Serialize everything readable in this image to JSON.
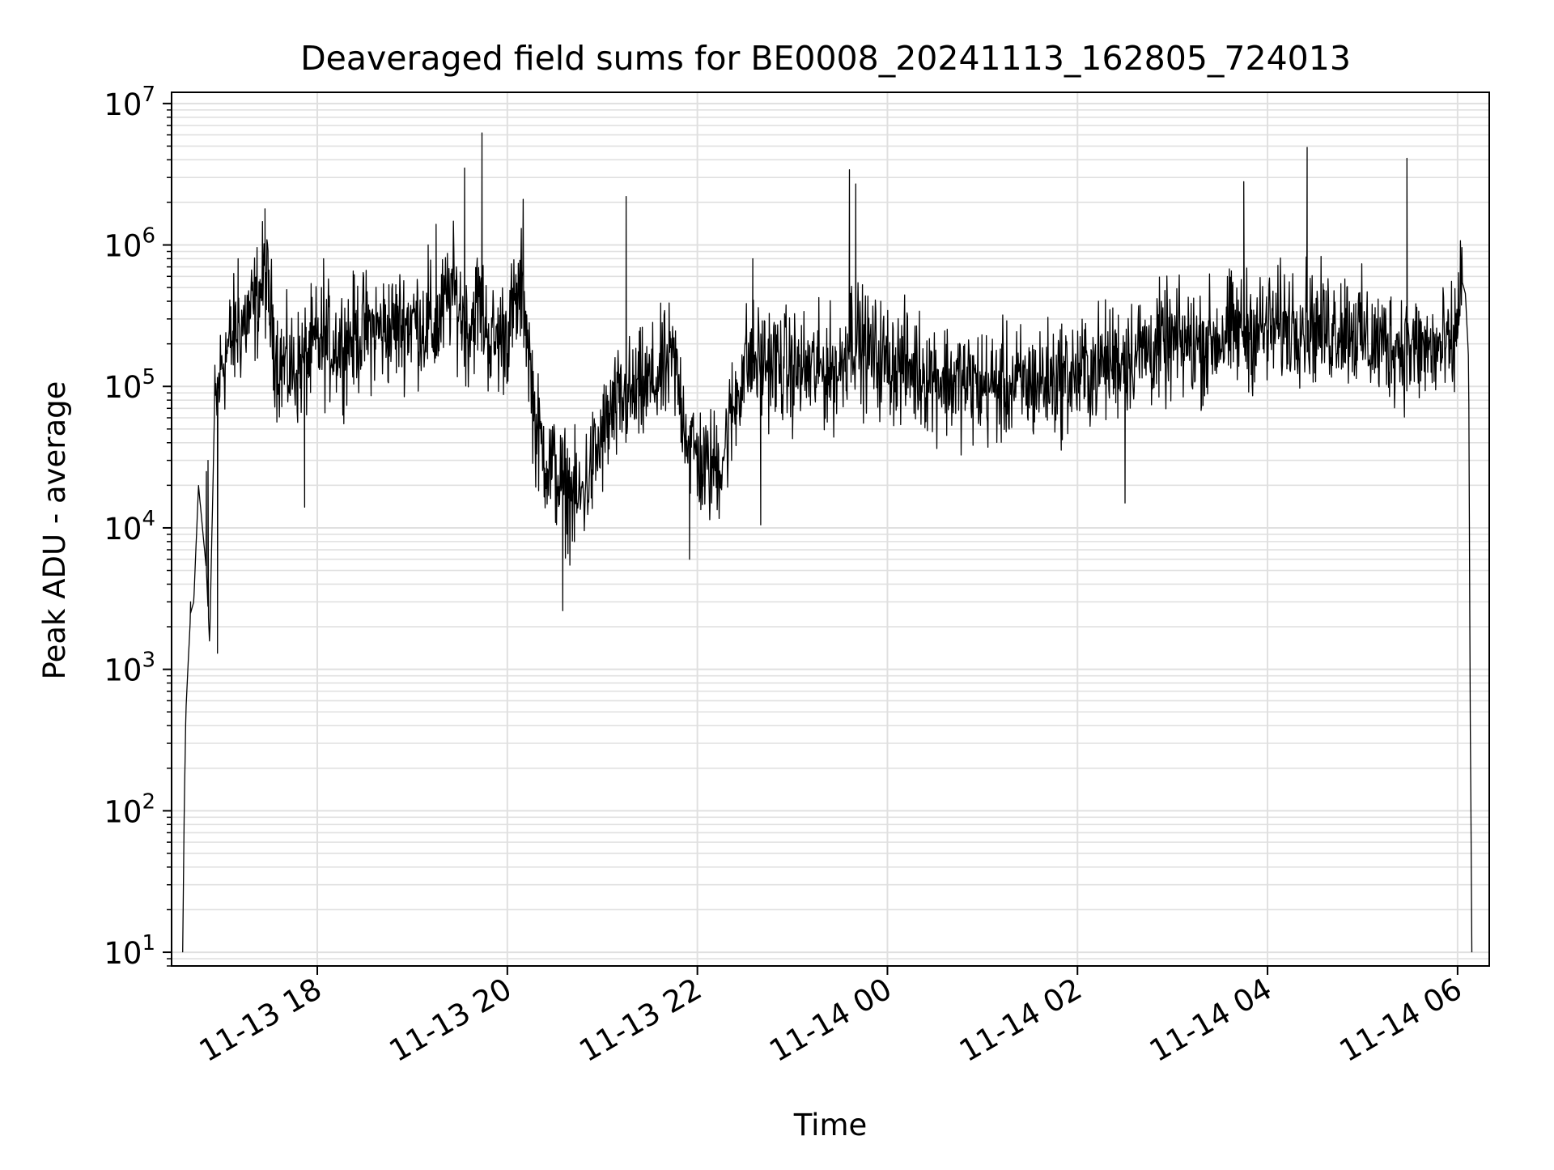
{
  "chart_data": {
    "type": "line",
    "title": "Deaveraged field sums for BE0008_20241113_162805_724013",
    "xlabel": "Time",
    "ylabel": "Peak ADU - average",
    "yscale": "log",
    "ylim": [
      8,
      12000000
    ],
    "xlim": [
      "2024-11-13 16:28",
      "2024-11-14 06:20"
    ],
    "grid": true,
    "line_color": "#000000",
    "grid_color": "#e0e0e0",
    "x_ticks": [
      {
        "t": "2024-11-13 18:00",
        "label": "11-13 18"
      },
      {
        "t": "2024-11-13 20:00",
        "label": "11-13 20"
      },
      {
        "t": "2024-11-13 22:00",
        "label": "11-13 22"
      },
      {
        "t": "2024-11-14 00:00",
        "label": "11-14 00"
      },
      {
        "t": "2024-11-14 02:00",
        "label": "11-14 02"
      },
      {
        "t": "2024-11-14 04:00",
        "label": "11-14 04"
      },
      {
        "t": "2024-11-14 06:00",
        "label": "11-14 06"
      }
    ],
    "y_ticks": [
      {
        "v": 10,
        "base": "10",
        "exp": "1"
      },
      {
        "v": 100,
        "base": "10",
        "exp": "2"
      },
      {
        "v": 1000,
        "base": "10",
        "exp": "3"
      },
      {
        "v": 10000,
        "base": "10",
        "exp": "4"
      },
      {
        "v": 100000,
        "base": "10",
        "exp": "5"
      },
      {
        "v": 1000000,
        "base": "10",
        "exp": "6"
      },
      {
        "v": 10000000,
        "base": "10",
        "exp": "7"
      }
    ],
    "series": [
      {
        "x": [
          "2024-11-13 16:35",
          "2024-11-13 16:36",
          "2024-11-13 16:37",
          "2024-11-13 16:40",
          "2024-11-13 16:42",
          "2024-11-13 16:45",
          "2024-11-13 16:50",
          "2024-11-13 16:52",
          "2024-11-13 16:55",
          "2024-11-13 17:00",
          "2024-11-13 17:05",
          "2024-11-13 17:10",
          "2024-11-13 17:20",
          "2024-11-13 17:27",
          "2024-11-13 17:35",
          "2024-11-13 17:45",
          "2024-11-13 17:52",
          "2024-11-13 18:00",
          "2024-11-13 18:15",
          "2024-11-13 18:30",
          "2024-11-13 18:45",
          "2024-11-13 19:00",
          "2024-11-13 19:15",
          "2024-11-13 19:25",
          "2024-11-13 19:35",
          "2024-11-13 19:42",
          "2024-11-13 19:50",
          "2024-11-13 20:00",
          "2024-11-13 20:10",
          "2024-11-13 20:18",
          "2024-11-13 20:25",
          "2024-11-13 20:35",
          "2024-11-13 20:45",
          "2024-11-13 20:55",
          "2024-11-13 21:05",
          "2024-11-13 21:15",
          "2024-11-13 21:30",
          "2024-11-13 21:45",
          "2024-11-13 21:55",
          "2024-11-13 22:05",
          "2024-11-13 22:15",
          "2024-11-13 22:30",
          "2024-11-13 22:45",
          "2024-11-13 23:00",
          "2024-11-13 23:15",
          "2024-11-13 23:30",
          "2024-11-13 23:37",
          "2024-11-13 23:45",
          "2024-11-14 00:00",
          "2024-11-14 00:20",
          "2024-11-14 00:40",
          "2024-11-14 01:00",
          "2024-11-14 01:20",
          "2024-11-14 01:40",
          "2024-11-14 02:00",
          "2024-11-14 02:20",
          "2024-11-14 02:40",
          "2024-11-14 03:00",
          "2024-11-14 03:20",
          "2024-11-14 03:40",
          "2024-11-14 04:00",
          "2024-11-14 04:20",
          "2024-11-14 04:35",
          "2024-11-14 04:50",
          "2024-11-14 05:05",
          "2024-11-14 05:20",
          "2024-11-14 05:35",
          "2024-11-14 05:50",
          "2024-11-14 05:58",
          "2024-11-14 06:02",
          "2024-11-14 06:05",
          "2024-11-14 06:07",
          "2024-11-14 06:08",
          "2024-11-14 06:09"
        ],
        "y": [
          10,
          100,
          500,
          2500,
          3000,
          20000,
          5000,
          1500,
          60000,
          150000,
          200000,
          250000,
          350000,
          600000,
          150000,
          130000,
          150000,
          200000,
          200000,
          250000,
          250000,
          300000,
          250000,
          500000,
          250000,
          400000,
          200000,
          250000,
          500000,
          50000,
          30000,
          20000,
          15000,
          30000,
          60000,
          80000,
          100000,
          150000,
          40000,
          25000,
          30000,
          150000,
          150000,
          130000,
          130000,
          130000,
          250000,
          180000,
          150000,
          130000,
          110000,
          100000,
          100000,
          110000,
          120000,
          150000,
          180000,
          200000,
          200000,
          250000,
          250000,
          300000,
          250000,
          280000,
          200000,
          200000,
          180000,
          180000,
          180000,
          600000,
          450000,
          150000,
          500,
          10
        ]
      }
    ],
    "noise_factor": 2.4,
    "spikes": [
      {
        "t": "2024-11-13 16:40",
        "v": 3000
      },
      {
        "t": "2024-11-13 16:50",
        "v": 25000
      },
      {
        "t": "2024-11-13 16:51",
        "v": 30000
      },
      {
        "t": "2024-11-13 16:57",
        "v": 1300
      },
      {
        "t": "2024-11-13 17:10",
        "v": 800000
      },
      {
        "t": "2024-11-13 17:27",
        "v": 1800000
      },
      {
        "t": "2024-11-13 17:52",
        "v": 14000
      },
      {
        "t": "2024-11-13 18:04",
        "v": 800000
      },
      {
        "t": "2024-11-13 19:10",
        "v": 1000000
      },
      {
        "t": "2024-11-13 19:15",
        "v": 1400000
      },
      {
        "t": "2024-11-13 19:33",
        "v": 3500000
      },
      {
        "t": "2024-11-13 19:44",
        "v": 6200000
      },
      {
        "t": "2024-11-13 20:10",
        "v": 2100000
      },
      {
        "t": "2024-11-13 20:35",
        "v": 2600
      },
      {
        "t": "2024-11-13 21:15",
        "v": 2200000
      },
      {
        "t": "2024-11-13 21:55",
        "v": 6000
      },
      {
        "t": "2024-11-13 22:35",
        "v": 800000
      },
      {
        "t": "2024-11-13 22:40",
        "v": 10500
      },
      {
        "t": "2024-11-13 23:36",
        "v": 3400000
      },
      {
        "t": "2024-11-13 23:40",
        "v": 2700000
      },
      {
        "t": "2024-11-14 02:30",
        "v": 15000
      },
      {
        "t": "2024-11-14 03:45",
        "v": 2800000
      },
      {
        "t": "2024-11-14 04:25",
        "v": 4900000
      },
      {
        "t": "2024-11-14 05:28",
        "v": 4100000
      }
    ]
  }
}
